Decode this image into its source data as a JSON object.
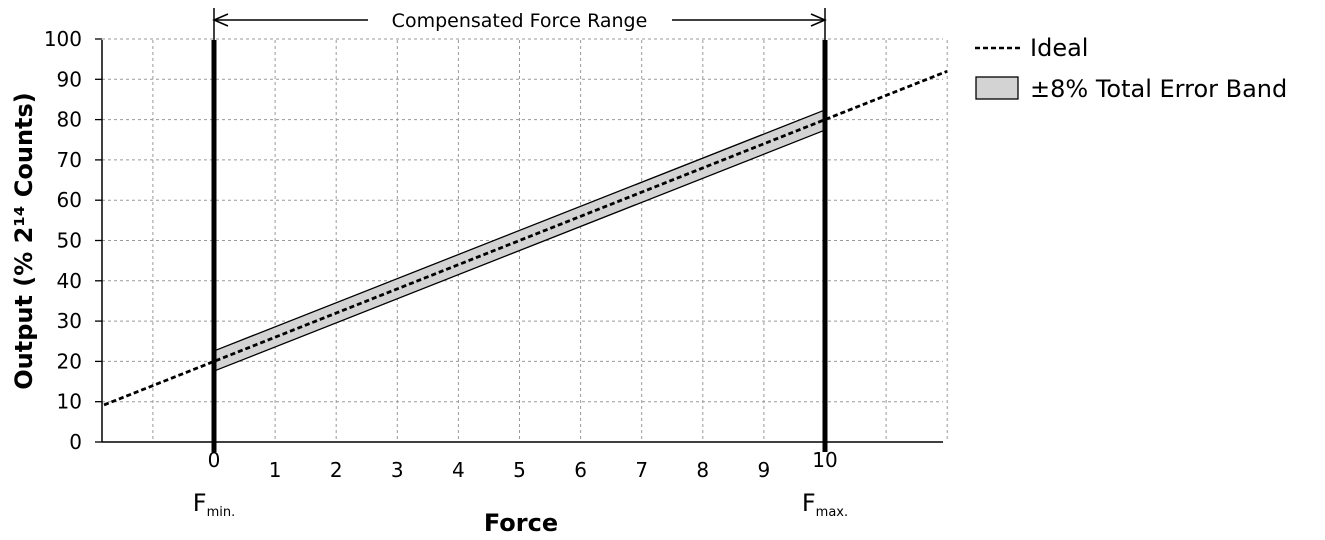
{
  "chart_data": {
    "type": "line",
    "xlabel": "Force",
    "ylabel": "Output (% 2¹⁴ Counts)",
    "xlim": [
      -1.8,
      12
    ],
    "ylim": [
      0,
      100
    ],
    "x_ticks": [
      "0",
      "1",
      "2",
      "3",
      "4",
      "5",
      "6",
      "7",
      "8",
      "9",
      "10"
    ],
    "y_ticks": [
      "0",
      "10",
      "20",
      "30",
      "40",
      "50",
      "60",
      "70",
      "80",
      "90",
      "100"
    ],
    "grid": true,
    "range_annotation": {
      "label": "Compensated Force Range",
      "from": 0,
      "to": 10
    },
    "markers": [
      {
        "x": 0,
        "label_main": "F",
        "label_sub": "min."
      },
      {
        "x": 10,
        "label_main": "F",
        "label_sub": "max."
      }
    ],
    "series": [
      {
        "name": "Ideal",
        "style": "dashed",
        "x": [
          -1.8,
          0,
          10,
          12
        ],
        "y": [
          9.2,
          20,
          80,
          92
        ]
      },
      {
        "name": "±8% Total Error Band",
        "style": "band",
        "x": [
          0,
          10
        ],
        "y_upper": [
          22.6,
          82.4
        ],
        "y_lower": [
          17.6,
          77.4
        ]
      }
    ],
    "legend": {
      "position": "top-right",
      "items": [
        {
          "label": "Ideal",
          "symbol": "dashed-line"
        },
        {
          "label_prefix": "±",
          "label_rest": "8% Total Error Band",
          "symbol": "gray-box"
        }
      ]
    },
    "colors": {
      "band_fill": "#d3d3d3",
      "line": "#000000",
      "grid": "#9a9a9a"
    }
  }
}
